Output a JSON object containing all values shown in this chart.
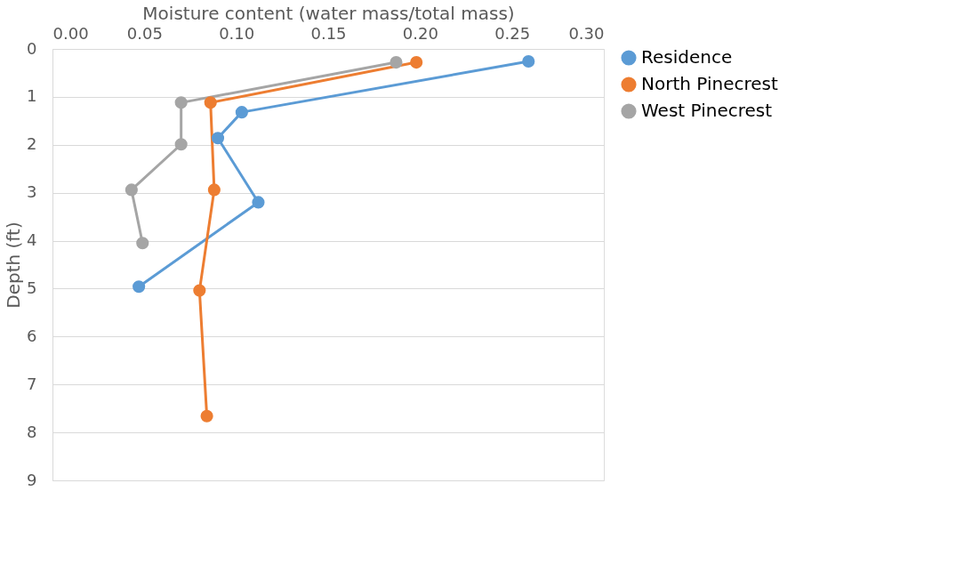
{
  "chart_data": {
    "type": "line",
    "xlabel": "Moisture content (water mass/total mass)",
    "ylabel": "Depth (ft)",
    "xlim": [
      0,
      0.3
    ],
    "xticks": [
      {
        "value": 0,
        "label": "0.00"
      },
      {
        "value": 0.05,
        "label": "0.05"
      },
      {
        "value": 0.1,
        "label": "0.10"
      },
      {
        "value": 0.15,
        "label": "0.15"
      },
      {
        "value": 0.2,
        "label": "0.20"
      },
      {
        "value": 0.25,
        "label": "0.25"
      },
      {
        "value": 0.3,
        "label": "0.30"
      }
    ],
    "ylim": [
      9,
      0
    ],
    "yticks": [
      0,
      1,
      2,
      3,
      4,
      5,
      6,
      7,
      8,
      9
    ],
    "series": [
      {
        "name": "Residence",
        "color": "#5b9bd5",
        "x": [
          0.259,
          0.103,
          0.09,
          0.112,
          0.047
        ],
        "values": [
          0.26,
          1.32,
          1.86,
          3.2,
          4.96
        ]
      },
      {
        "name": "North Pinecrest",
        "color": "#ed7d31",
        "x": [
          0.198,
          0.086,
          0.088,
          0.08,
          0.084
        ],
        "values": [
          0.28,
          1.12,
          2.94,
          5.04,
          7.66
        ]
      },
      {
        "name": "West Pinecrest",
        "color": "#a5a5a5",
        "x": [
          0.187,
          0.07,
          0.07,
          0.043,
          0.049
        ],
        "values": [
          0.28,
          1.12,
          1.99,
          2.94,
          4.05
        ]
      }
    ],
    "marker": "circle",
    "grid": "y",
    "legend": "right"
  }
}
